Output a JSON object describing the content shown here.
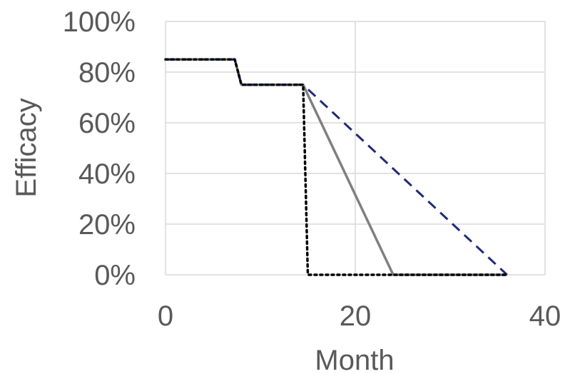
{
  "chart_data": {
    "type": "line",
    "xlabel": "Month",
    "ylabel": "Efficacy",
    "xlim": [
      0,
      40
    ],
    "ylim": [
      0,
      1
    ],
    "x_ticks": [
      0,
      20,
      40
    ],
    "x_tick_labels": [
      "0",
      "20",
      "40"
    ],
    "y_ticks": [
      0,
      0.2,
      0.4,
      0.6,
      0.8,
      1.0
    ],
    "y_tick_labels": [
      "0%",
      "20%",
      "40%",
      "60%",
      "80%",
      "100%"
    ],
    "grid": true,
    "legend": "none",
    "series": [
      {
        "style": "dotted",
        "color": "#000000",
        "points": [
          [
            0,
            0.85
          ],
          [
            7.3,
            0.85
          ],
          [
            8,
            0.75
          ],
          [
            14.5,
            0.75
          ],
          [
            15,
            0.0
          ],
          [
            36,
            0.0
          ]
        ]
      },
      {
        "style": "solid",
        "color": "#808080",
        "points": [
          [
            0,
            0.85
          ],
          [
            7.3,
            0.85
          ],
          [
            8,
            0.75
          ],
          [
            14.5,
            0.75
          ],
          [
            24,
            0.0
          ],
          [
            36,
            0.0
          ]
        ]
      },
      {
        "style": "dashed",
        "color": "#1f2a7a",
        "points": [
          [
            0,
            0.85
          ],
          [
            7.3,
            0.85
          ],
          [
            8,
            0.75
          ],
          [
            14.5,
            0.75
          ],
          [
            36,
            0.0
          ]
        ]
      }
    ]
  }
}
